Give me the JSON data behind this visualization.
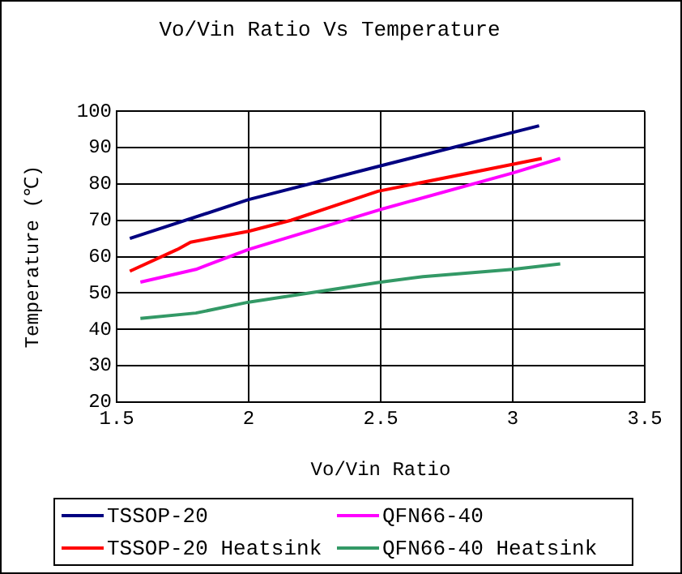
{
  "chart_data": {
    "type": "line",
    "title": "Vo/Vin Ratio Vs Temperature",
    "xlabel": "Vo/Vin Ratio",
    "ylabel": "Temperature (℃)",
    "xlim": [
      1.5,
      3.5
    ],
    "xticks": [
      1.5,
      2,
      2.5,
      3,
      3.5
    ],
    "ylim": [
      20,
      100
    ],
    "yticks": [
      20,
      30,
      40,
      50,
      60,
      70,
      80,
      90,
      100
    ],
    "grid": true,
    "legend": "bottom",
    "marker": "none",
    "line_style": "solid",
    "series": [
      {
        "name": "TSSOP-20",
        "color": "#000080",
        "x": [
          1.55,
          2,
          2.5,
          3.1
        ],
        "values": [
          65,
          75.7,
          85,
          96
        ]
      },
      {
        "name": "TSSOP-20 Heatsink",
        "color": "#ff0000",
        "x": [
          1.55,
          1.73,
          1.78,
          2,
          2.16,
          2.49,
          3.11
        ],
        "values": [
          56,
          62,
          64,
          67,
          70,
          78,
          87
        ]
      },
      {
        "name": "QFN66-40",
        "color": "#ff00ff",
        "x": [
          1.59,
          1.8,
          2,
          2.5,
          3,
          3.18
        ],
        "values": [
          53,
          56.5,
          62,
          73,
          83,
          87
        ]
      },
      {
        "name": "QFN66-40 Heatsink",
        "color": "#339966",
        "x": [
          1.59,
          1.8,
          2,
          2.5,
          2.66,
          3,
          3.18
        ],
        "values": [
          43,
          44.5,
          47.5,
          53,
          54.5,
          56.5,
          58
        ]
      }
    ]
  }
}
